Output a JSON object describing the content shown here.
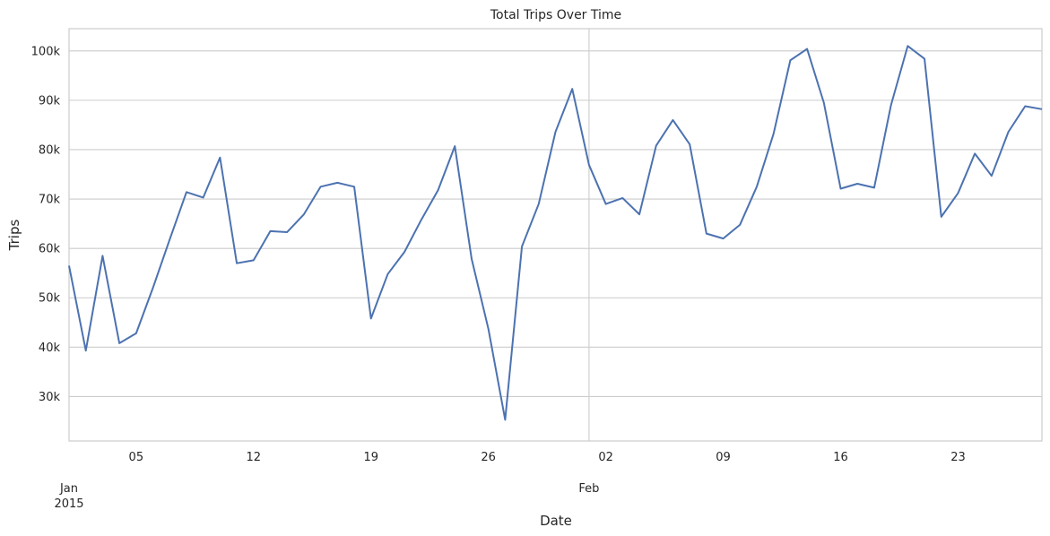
{
  "chart_data": {
    "type": "line",
    "title": "Total Trips Over Time",
    "xlabel": "Date",
    "ylabel": "Trips",
    "x_range": [
      "2015-01-01",
      "2015-02-28"
    ],
    "y_ticks": [
      30000,
      40000,
      50000,
      60000,
      70000,
      80000,
      90000,
      100000
    ],
    "y_tick_labels": [
      "30k",
      "40k",
      "50k",
      "60k",
      "70k",
      "80k",
      "90k",
      "100k"
    ],
    "ylim": [
      21000,
      104500
    ],
    "x_minor_ticks": [
      {
        "date": "2015-01-05",
        "label": "05"
      },
      {
        "date": "2015-01-12",
        "label": "12"
      },
      {
        "date": "2015-01-19",
        "label": "19"
      },
      {
        "date": "2015-01-26",
        "label": "26"
      },
      {
        "date": "2015-02-02",
        "label": "02"
      },
      {
        "date": "2015-02-09",
        "label": "09"
      },
      {
        "date": "2015-02-16",
        "label": "16"
      },
      {
        "date": "2015-02-23",
        "label": "23"
      }
    ],
    "x_major_ticks": [
      {
        "date": "2015-01-01",
        "label": "Jan",
        "sublabel": "2015"
      },
      {
        "date": "2015-02-01",
        "label": "Feb",
        "sublabel": ""
      }
    ],
    "grid": true,
    "line_color": "#4c72b0",
    "series": [
      {
        "values": [
          {
            "x": "2015-01-01",
            "y": 56500
          },
          {
            "x": "2015-01-02",
            "y": 39300
          },
          {
            "x": "2015-01-03",
            "y": 58500
          },
          {
            "x": "2015-01-04",
            "y": 40800
          },
          {
            "x": "2015-01-05",
            "y": 42800
          },
          {
            "x": "2015-01-06",
            "y": 52000
          },
          {
            "x": "2015-01-07",
            "y": 61800
          },
          {
            "x": "2015-01-08",
            "y": 71400
          },
          {
            "x": "2015-01-09",
            "y": 70300
          },
          {
            "x": "2015-01-10",
            "y": 78400
          },
          {
            "x": "2015-01-11",
            "y": 57000
          },
          {
            "x": "2015-01-12",
            "y": 57600
          },
          {
            "x": "2015-01-13",
            "y": 63500
          },
          {
            "x": "2015-01-14",
            "y": 63300
          },
          {
            "x": "2015-01-15",
            "y": 66900
          },
          {
            "x": "2015-01-16",
            "y": 72500
          },
          {
            "x": "2015-01-17",
            "y": 73300
          },
          {
            "x": "2015-01-18",
            "y": 72500
          },
          {
            "x": "2015-01-19",
            "y": 45800
          },
          {
            "x": "2015-01-20",
            "y": 54800
          },
          {
            "x": "2015-01-21",
            "y": 59300
          },
          {
            "x": "2015-01-22",
            "y": 65800
          },
          {
            "x": "2015-01-23",
            "y": 71800
          },
          {
            "x": "2015-01-24",
            "y": 80700
          },
          {
            "x": "2015-01-25",
            "y": 57900
          },
          {
            "x": "2015-01-26",
            "y": 43700
          },
          {
            "x": "2015-01-27",
            "y": 25300
          },
          {
            "x": "2015-01-28",
            "y": 60400
          },
          {
            "x": "2015-01-29",
            "y": 69000
          },
          {
            "x": "2015-01-30",
            "y": 83600
          },
          {
            "x": "2015-01-31",
            "y": 92300
          },
          {
            "x": "2015-02-01",
            "y": 76900
          },
          {
            "x": "2015-02-02",
            "y": 69000
          },
          {
            "x": "2015-02-03",
            "y": 70200
          },
          {
            "x": "2015-02-04",
            "y": 66900
          },
          {
            "x": "2015-02-05",
            "y": 80800
          },
          {
            "x": "2015-02-06",
            "y": 86000
          },
          {
            "x": "2015-02-07",
            "y": 81100
          },
          {
            "x": "2015-02-08",
            "y": 63000
          },
          {
            "x": "2015-02-09",
            "y": 62000
          },
          {
            "x": "2015-02-10",
            "y": 64800
          },
          {
            "x": "2015-02-11",
            "y": 72500
          },
          {
            "x": "2015-02-12",
            "y": 83200
          },
          {
            "x": "2015-02-13",
            "y": 98100
          },
          {
            "x": "2015-02-14",
            "y": 100400
          },
          {
            "x": "2015-02-15",
            "y": 89500
          },
          {
            "x": "2015-02-16",
            "y": 72100
          },
          {
            "x": "2015-02-17",
            "y": 73100
          },
          {
            "x": "2015-02-18",
            "y": 72300
          },
          {
            "x": "2015-02-19",
            "y": 89000
          },
          {
            "x": "2015-02-20",
            "y": 101000
          },
          {
            "x": "2015-02-21",
            "y": 98400
          },
          {
            "x": "2015-02-22",
            "y": 66400
          },
          {
            "x": "2015-02-23",
            "y": 71200
          },
          {
            "x": "2015-02-24",
            "y": 79200
          },
          {
            "x": "2015-02-25",
            "y": 74700
          },
          {
            "x": "2015-02-26",
            "y": 83600
          },
          {
            "x": "2015-02-27",
            "y": 88800
          },
          {
            "x": "2015-02-28",
            "y": 88200
          }
        ]
      }
    ]
  }
}
